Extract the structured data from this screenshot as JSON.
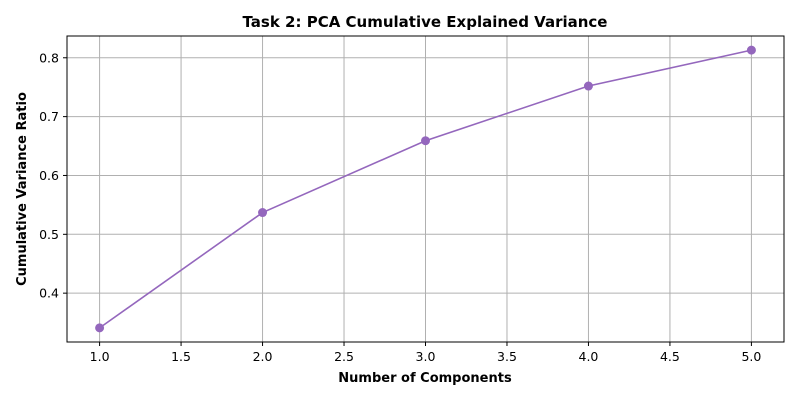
{
  "chart_data": {
    "type": "line",
    "title": "Task 2: PCA Cumulative Explained Variance",
    "xlabel": "Number of Components",
    "ylabel": "Cumulative Variance Ratio",
    "x": [
      1,
      2,
      3,
      4,
      5
    ],
    "series": [
      {
        "values": [
          0.341,
          0.537,
          0.659,
          0.752,
          0.813
        ],
        "color": "#9467bd",
        "marker": "circle"
      }
    ],
    "xlim": [
      0.8,
      5.2
    ],
    "ylim": [
      0.317,
      0.837
    ],
    "xticks": [
      "1.0",
      "1.5",
      "2.0",
      "2.5",
      "3.0",
      "3.5",
      "4.0",
      "4.5",
      "5.0"
    ],
    "xtick_values": [
      1.0,
      1.5,
      2.0,
      2.5,
      3.0,
      3.5,
      4.0,
      4.5,
      5.0
    ],
    "yticks": [
      "0.4",
      "0.5",
      "0.6",
      "0.7",
      "0.8"
    ],
    "ytick_values": [
      0.4,
      0.5,
      0.6,
      0.7,
      0.8
    ],
    "grid": true,
    "legend": "none"
  }
}
